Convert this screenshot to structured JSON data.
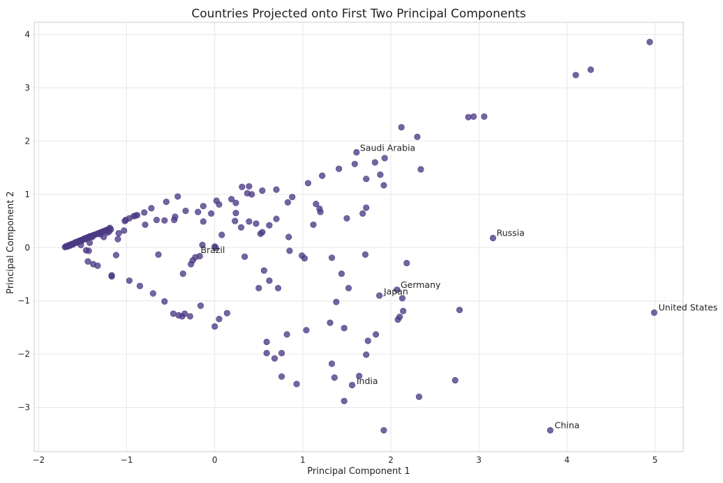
{
  "chart_data": {
    "type": "scatter",
    "title": "Countries Projected onto First Two Principal Components",
    "xlabel": "Principal Component 1",
    "ylabel": "Principal Component 2",
    "xlim": [
      -2.05,
      5.32
    ],
    "ylim": [
      -3.83,
      4.23
    ],
    "xticks": [
      -2,
      -1,
      0,
      1,
      2,
      3,
      4,
      5
    ],
    "yticks": [
      -3,
      -2,
      -1,
      0,
      1,
      2,
      3,
      4
    ],
    "xtick_labels": [
      "−2",
      "−1",
      "0",
      "1",
      "2",
      "3",
      "4",
      "5"
    ],
    "ytick_labels": [
      "−3",
      "−2",
      "−1",
      "0",
      "1",
      "2",
      "3",
      "4"
    ],
    "grid": true,
    "marker_color": "#4b3a84",
    "points": [
      [
        -1.7,
        0.01
      ],
      [
        -1.69,
        0.02
      ],
      [
        -1.68,
        0.03
      ],
      [
        -1.67,
        0.02
      ],
      [
        -1.66,
        0.04
      ],
      [
        -1.65,
        0.05
      ],
      [
        -1.64,
        0.04
      ],
      [
        -1.63,
        0.06
      ],
      [
        -1.62,
        0.07
      ],
      [
        -1.61,
        0.06
      ],
      [
        -1.6,
        0.08
      ],
      [
        -1.59,
        0.09
      ],
      [
        -1.58,
        0.1
      ],
      [
        -1.57,
        0.09
      ],
      [
        -1.56,
        0.11
      ],
      [
        -1.55,
        0.12
      ],
      [
        -1.54,
        0.11
      ],
      [
        -1.53,
        0.13
      ],
      [
        -1.52,
        0.14
      ],
      [
        -1.51,
        0.13
      ],
      [
        -1.5,
        0.15
      ],
      [
        -1.49,
        0.16
      ],
      [
        -1.48,
        0.17
      ],
      [
        -1.47,
        0.16
      ],
      [
        -1.46,
        0.18
      ],
      [
        -1.45,
        0.19
      ],
      [
        -1.44,
        0.18
      ],
      [
        -1.43,
        0.2
      ],
      [
        -1.42,
        0.21
      ],
      [
        -1.41,
        0.2
      ],
      [
        -1.4,
        0.22
      ],
      [
        -1.38,
        0.23
      ],
      [
        -1.37,
        0.24
      ],
      [
        -1.35,
        0.25
      ],
      [
        -1.33,
        0.26
      ],
      [
        -1.32,
        0.27
      ],
      [
        -1.3,
        0.28
      ],
      [
        -1.29,
        0.29
      ],
      [
        -1.27,
        0.3
      ],
      [
        -1.26,
        0.31
      ],
      [
        -1.24,
        0.32
      ],
      [
        -1.23,
        0.33
      ],
      [
        -1.21,
        0.34
      ],
      [
        -1.2,
        0.35
      ],
      [
        -1.19,
        0.37
      ],
      [
        -1.18,
        0.34
      ],
      [
        -1.2,
        0.3
      ],
      [
        -1.22,
        0.28
      ],
      [
        -1.26,
        0.2
      ],
      [
        -1.3,
        0.25
      ],
      [
        -1.39,
        0.2
      ],
      [
        -1.42,
        0.09
      ],
      [
        -1.46,
        0.17
      ],
      [
        -1.52,
        0.05
      ],
      [
        -1.55,
        0.11
      ],
      [
        -1.09,
        0.27
      ],
      [
        -1.1,
        0.16
      ],
      [
        -1.03,
        0.32
      ],
      [
        -1.02,
        0.5
      ],
      [
        -1.01,
        0.52
      ],
      [
        -0.97,
        0.55
      ],
      [
        -0.92,
        0.59
      ],
      [
        -0.9,
        0.6
      ],
      [
        -0.88,
        0.61
      ],
      [
        -0.8,
        0.66
      ],
      [
        -0.79,
        0.43
      ],
      [
        -0.72,
        0.74
      ],
      [
        -0.66,
        0.52
      ],
      [
        -0.57,
        0.51
      ],
      [
        -0.55,
        0.86
      ],
      [
        -0.46,
        0.52
      ],
      [
        -0.45,
        0.58
      ],
      [
        -0.42,
        0.96
      ],
      [
        -0.33,
        0.69
      ],
      [
        -0.19,
        0.67
      ],
      [
        -0.13,
        0.49
      ],
      [
        -0.13,
        0.78
      ],
      [
        -0.04,
        0.64
      ],
      [
        0.02,
        0.88
      ],
      [
        0.05,
        0.81
      ],
      [
        0.08,
        0.24
      ],
      [
        -0.17,
        -0.16
      ],
      [
        -0.22,
        -0.18
      ],
      [
        -0.25,
        -0.24
      ],
      [
        -0.27,
        -0.31
      ],
      [
        -0.14,
        0.05
      ],
      [
        0.0,
        0.02
      ],
      [
        0.01,
        0.0
      ],
      [
        -1.46,
        -0.05
      ],
      [
        -1.43,
        -0.06
      ],
      [
        -1.44,
        -0.26
      ],
      [
        -1.38,
        -0.31
      ],
      [
        -1.33,
        -0.34
      ],
      [
        -1.12,
        -0.14
      ],
      [
        -1.17,
        -0.52
      ],
      [
        -1.17,
        -0.54
      ],
      [
        -0.97,
        -0.62
      ],
      [
        -0.85,
        -0.72
      ],
      [
        -0.7,
        -0.86
      ],
      [
        -0.57,
        -1.01
      ],
      [
        -0.47,
        -1.24
      ],
      [
        -0.41,
        -1.27
      ],
      [
        -0.37,
        -1.29
      ],
      [
        -0.34,
        -1.24
      ],
      [
        -0.28,
        -1.29
      ],
      [
        -0.16,
        -1.09
      ],
      [
        -0.36,
        -0.49
      ],
      [
        -0.64,
        -0.13
      ],
      [
        0.0,
        -1.48
      ],
      [
        0.05,
        -1.34
      ],
      [
        0.14,
        -1.23
      ],
      [
        0.19,
        0.91
      ],
      [
        0.23,
        0.5
      ],
      [
        0.24,
        0.84
      ],
      [
        0.24,
        0.65
      ],
      [
        0.3,
        0.38
      ],
      [
        0.31,
        1.14
      ],
      [
        0.34,
        -0.17
      ],
      [
        0.37,
        1.02
      ],
      [
        0.39,
        1.15
      ],
      [
        0.39,
        0.49
      ],
      [
        0.42,
        1.0
      ],
      [
        0.47,
        0.45
      ],
      [
        0.5,
        -0.76
      ],
      [
        0.52,
        0.26
      ],
      [
        0.54,
        0.29
      ],
      [
        0.54,
        1.07
      ],
      [
        0.56,
        -0.43
      ],
      [
        0.59,
        -1.77
      ],
      [
        0.59,
        -1.98
      ],
      [
        0.62,
        -0.62
      ],
      [
        0.62,
        0.42
      ],
      [
        0.68,
        -2.08
      ],
      [
        0.7,
        1.09
      ],
      [
        0.7,
        0.54
      ],
      [
        0.72,
        -0.76
      ],
      [
        0.76,
        -1.98
      ],
      [
        0.76,
        -2.42
      ],
      [
        0.82,
        -1.63
      ],
      [
        0.83,
        0.85
      ],
      [
        0.84,
        0.2
      ],
      [
        0.85,
        -0.06
      ],
      [
        0.88,
        0.95
      ],
      [
        0.93,
        -2.56
      ],
      [
        0.99,
        -0.15
      ],
      [
        1.02,
        -0.2
      ],
      [
        1.04,
        -1.55
      ],
      [
        1.06,
        1.21
      ],
      [
        1.12,
        0.43
      ],
      [
        1.15,
        0.82
      ],
      [
        1.19,
        0.73
      ],
      [
        1.2,
        0.67
      ],
      [
        1.22,
        1.35
      ],
      [
        1.31,
        -1.41
      ],
      [
        1.33,
        -0.19
      ],
      [
        1.33,
        -2.18
      ],
      [
        1.36,
        -2.44
      ],
      [
        1.38,
        -1.02
      ],
      [
        1.41,
        1.48
      ],
      [
        1.44,
        -0.49
      ],
      [
        1.47,
        -2.88
      ],
      [
        1.47,
        -1.51
      ],
      [
        1.5,
        0.55
      ],
      [
        1.52,
        -0.76
      ],
      [
        1.56,
        -2.58
      ],
      [
        1.59,
        1.57
      ],
      [
        1.61,
        1.79
      ],
      [
        1.64,
        -2.41
      ],
      [
        1.68,
        0.64
      ],
      [
        1.71,
        -0.13
      ],
      [
        1.72,
        1.29
      ],
      [
        1.72,
        0.75
      ],
      [
        1.72,
        -2.01
      ],
      [
        1.74,
        -1.75
      ],
      [
        1.82,
        1.6
      ],
      [
        1.83,
        -1.63
      ],
      [
        1.87,
        -0.9
      ],
      [
        1.88,
        1.37
      ],
      [
        1.92,
        1.17
      ],
      [
        1.93,
        1.68
      ],
      [
        1.92,
        -3.43
      ],
      [
        2.07,
        -0.79
      ],
      [
        2.08,
        -1.35
      ],
      [
        2.1,
        -1.3
      ],
      [
        2.12,
        2.26
      ],
      [
        2.13,
        -0.95
      ],
      [
        2.14,
        -1.19
      ],
      [
        2.18,
        -0.29
      ],
      [
        2.3,
        2.08
      ],
      [
        2.32,
        -2.8
      ],
      [
        2.34,
        1.47
      ],
      [
        2.73,
        -2.49
      ],
      [
        2.78,
        -1.17
      ],
      [
        2.88,
        2.45
      ],
      [
        2.94,
        2.46
      ],
      [
        3.06,
        2.46
      ],
      [
        3.16,
        0.18
      ],
      [
        3.81,
        -3.43
      ],
      [
        4.1,
        3.24
      ],
      [
        4.27,
        3.34
      ],
      [
        4.94,
        3.86
      ],
      [
        4.99,
        -1.22
      ]
    ],
    "annotations": [
      {
        "text": "Saudi Arabia",
        "x": 1.65,
        "y": 1.87
      },
      {
        "text": "Russia",
        "x": 3.2,
        "y": 0.27
      },
      {
        "text": "Germany",
        "x": 2.11,
        "y": -0.7
      },
      {
        "text": "Japan",
        "x": 1.92,
        "y": -0.83
      },
      {
        "text": "United States",
        "x": 5.04,
        "y": -1.13
      },
      {
        "text": "Brazil",
        "x": -0.16,
        "y": -0.05
      },
      {
        "text": "India",
        "x": 1.61,
        "y": -2.51
      },
      {
        "text": "China",
        "x": 3.86,
        "y": -3.34
      }
    ]
  }
}
